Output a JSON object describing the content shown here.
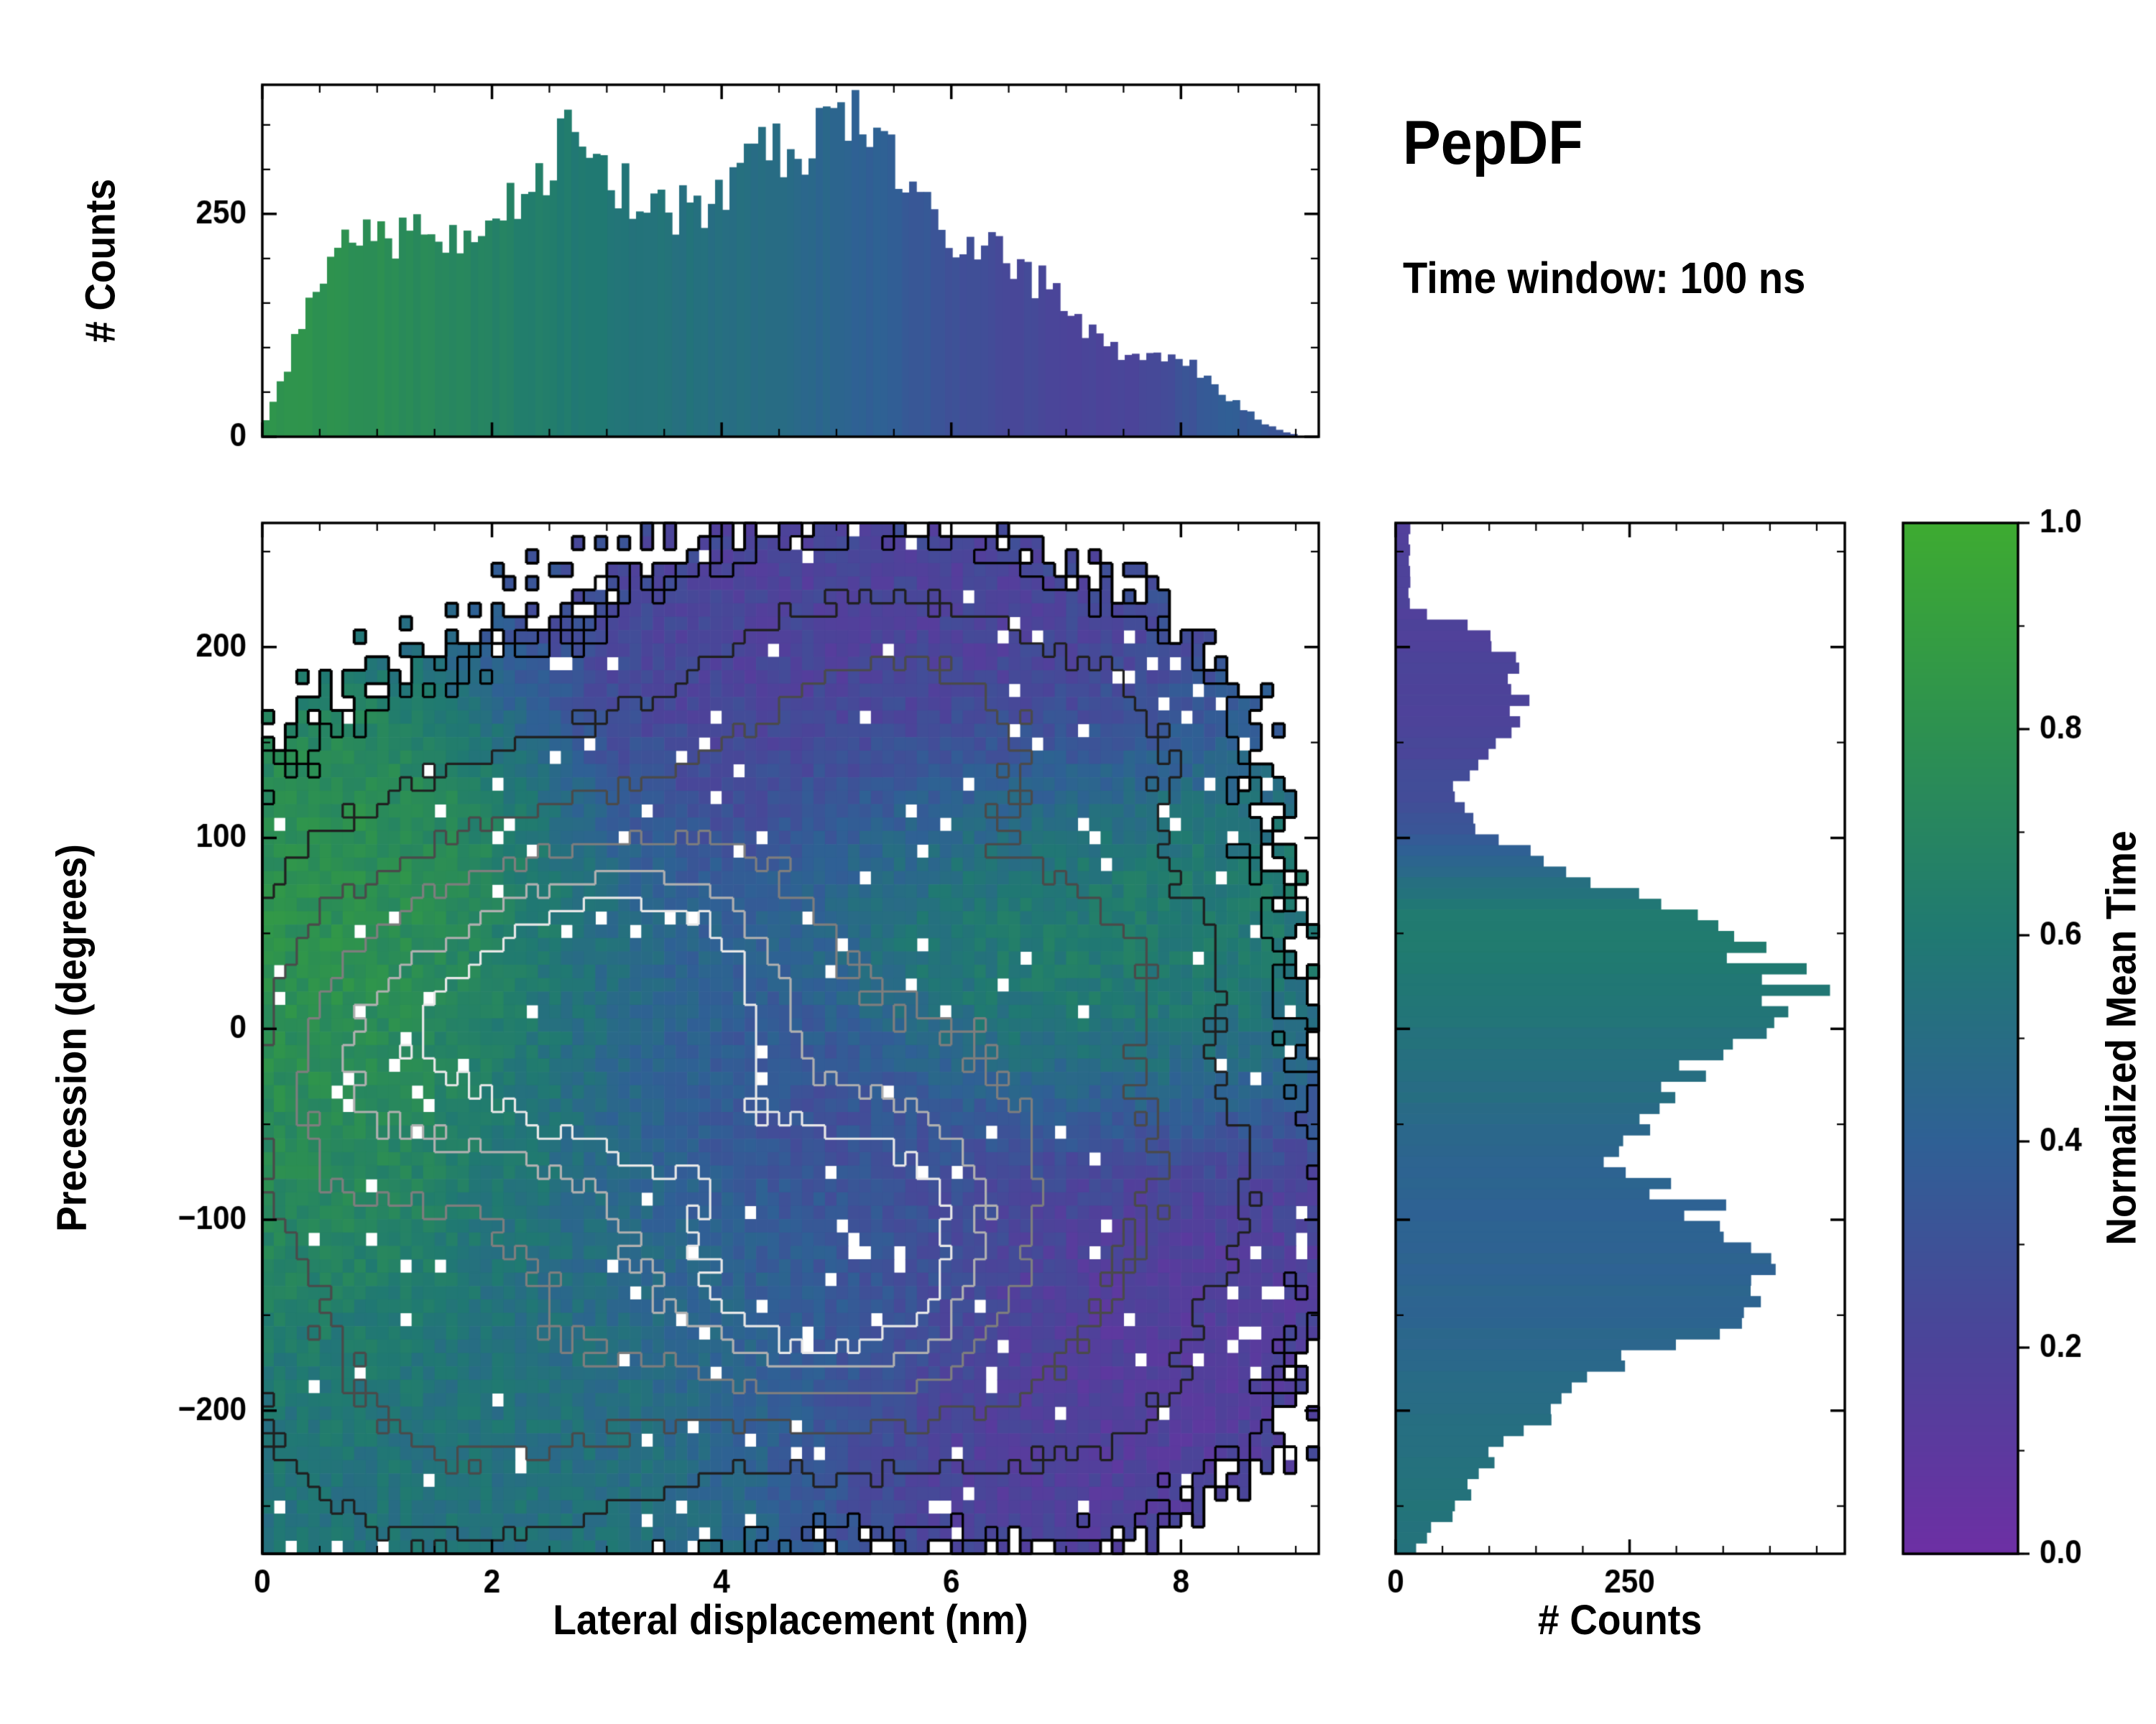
{
  "header": {
    "title": "PepDF",
    "subtitle": "Time window: 100 ns"
  },
  "colorbar": {
    "label": "Normalized Mean Time",
    "range": [
      0,
      1
    ],
    "tick_labels": [
      "0.0",
      "0.2",
      "0.4",
      "0.6",
      "0.8",
      "1.0"
    ],
    "minor_step": 0.1,
    "stops": [
      [
        0.0,
        "#6d2fa4"
      ],
      [
        0.2,
        "#4c4399"
      ],
      [
        0.4,
        "#2f6095"
      ],
      [
        0.6,
        "#207972"
      ],
      [
        0.8,
        "#2d9150"
      ],
      [
        1.0,
        "#3eab31"
      ]
    ]
  },
  "chart_data": [
    {
      "type": "bar",
      "name": "top-marginal-histogram",
      "ylabel": "# Counts",
      "xlim": [
        0,
        9.2
      ],
      "ylim": [
        0,
        395
      ],
      "xticks": [
        0,
        2,
        4,
        6,
        8
      ],
      "yticks": [
        0,
        250
      ],
      "xminor_step": 0.5,
      "yminor_step": 50,
      "bins": 147,
      "profile_x": [
        0.0,
        0.15,
        0.4,
        0.7,
        1.0,
        1.3,
        1.6,
        1.9,
        2.2,
        2.5,
        2.7,
        2.9,
        3.2,
        3.5,
        3.8,
        4.1,
        4.4,
        4.7,
        5.0,
        5.3,
        5.6,
        5.9,
        6.2,
        6.5,
        6.8,
        7.1,
        7.4,
        7.7,
        8.0,
        8.2,
        8.5,
        8.8,
        9.05
      ],
      "profile_counts": [
        5,
        60,
        140,
        215,
        235,
        225,
        220,
        245,
        255,
        295,
        345,
        285,
        270,
        245,
        255,
        295,
        315,
        335,
        370,
        335,
        300,
        215,
        230,
        205,
        170,
        130,
        100,
        85,
        95,
        70,
        35,
        10,
        0
      ],
      "color_x": [
        0,
        1,
        2,
        3,
        4,
        4.8,
        5.5,
        6,
        6.5,
        7,
        7.6,
        8,
        8.4,
        9.05
      ],
      "color_t": [
        0.82,
        0.78,
        0.68,
        0.58,
        0.52,
        0.46,
        0.38,
        0.3,
        0.25,
        0.22,
        0.2,
        0.3,
        0.38,
        0.3
      ]
    },
    {
      "type": "heatmap",
      "name": "joint-heatmap",
      "xlabel": "Lateral displacement (nm)",
      "ylabel": "Precession (degrees)",
      "value_label": "Normalized Mean Time",
      "xlim": [
        0,
        9.2
      ],
      "ylim": [
        -275,
        265
      ],
      "xticks": [
        0,
        2,
        4,
        6,
        8
      ],
      "yticks": [
        -200,
        -100,
        0,
        100,
        200
      ],
      "xminor_step": 0.5,
      "yminor_step": 50,
      "grid_nx": 92,
      "grid_ny": 77,
      "mask_threshold": 0.13,
      "hole_fraction": 0.03,
      "density_blobs": [
        [
          2.7,
          15,
          1.1,
          70,
          0.95
        ],
        [
          3.4,
          10,
          0.7,
          45,
          0.8
        ],
        [
          5.0,
          -135,
          0.9,
          50,
          1.3
        ],
        [
          1.2,
          -5,
          0.9,
          70,
          0.75
        ],
        [
          4.3,
          55,
          1.6,
          85,
          0.5
        ],
        [
          5.2,
          160,
          1.1,
          55,
          0.5
        ],
        [
          6.3,
          170,
          0.9,
          40,
          0.35
        ],
        [
          7.7,
          150,
          0.6,
          35,
          0.25
        ],
        [
          6.6,
          40,
          1.1,
          55,
          0.45
        ],
        [
          7.6,
          30,
          0.7,
          45,
          0.3
        ],
        [
          1.6,
          -215,
          1.1,
          55,
          0.5
        ],
        [
          2.9,
          -165,
          1.0,
          55,
          0.45
        ],
        [
          6.8,
          -120,
          1.4,
          65,
          0.42
        ],
        [
          6.9,
          -195,
          1.0,
          45,
          0.3
        ],
        [
          7.8,
          -75,
          0.8,
          45,
          0.3
        ],
        [
          5.8,
          -60,
          1.0,
          50,
          0.45
        ],
        [
          3.8,
          -90,
          1.4,
          70,
          0.5
        ],
        [
          0.5,
          -90,
          0.7,
          90,
          0.5
        ],
        [
          3.5,
          -30,
          3.0,
          150,
          0.3
        ]
      ],
      "value_blobs": [
        [
          1.0,
          10,
          1.1,
          80,
          0.85,
          3
        ],
        [
          1.8,
          60,
          0.9,
          50,
          0.8,
          2
        ],
        [
          0.6,
          -70,
          0.8,
          70,
          0.75,
          2
        ],
        [
          2.8,
          15,
          0.9,
          45,
          0.45,
          2.5
        ],
        [
          3.6,
          15,
          0.7,
          40,
          0.48,
          2
        ],
        [
          2.5,
          -60,
          1.2,
          60,
          0.5,
          1.5
        ],
        [
          4.6,
          -35,
          0.9,
          45,
          0.15,
          2.5
        ],
        [
          5.2,
          160,
          1.6,
          75,
          0.15,
          3
        ],
        [
          4.5,
          105,
          1.2,
          50,
          0.3,
          2
        ],
        [
          6.6,
          40,
          1.3,
          55,
          0.72,
          4
        ],
        [
          5.9,
          75,
          0.8,
          40,
          0.75,
          1.5
        ],
        [
          5.0,
          -135,
          1.0,
          55,
          0.42,
          2.5
        ],
        [
          7.0,
          -130,
          1.6,
          85,
          0.12,
          3
        ],
        [
          6.9,
          -200,
          1.2,
          50,
          0.14,
          2
        ],
        [
          1.6,
          -215,
          1.6,
          65,
          0.56,
          3
        ],
        [
          3.0,
          -160,
          1.1,
          55,
          0.5,
          2
        ],
        [
          4.0,
          -90,
          1.3,
          60,
          0.45,
          1.5
        ],
        [
          8.0,
          30,
          0.8,
          50,
          0.65,
          1.5
        ]
      ],
      "value_base": [
        0.5,
        0.25
      ],
      "contour_levels": [
        [
          0.18,
          "#000000"
        ],
        [
          0.45,
          "#1f1f1f"
        ],
        [
          0.8,
          "#4a4a4a"
        ],
        [
          1.15,
          "#7e7e7e"
        ],
        [
          1.45,
          "#b0b0b0"
        ],
        [
          1.7,
          "#e8e8e8"
        ]
      ]
    },
    {
      "type": "bar",
      "name": "right-marginal-histogram",
      "orientation": "horizontal",
      "xlabel": "# Counts",
      "xlim": [
        0,
        480
      ],
      "ylim": [
        -275,
        265
      ],
      "xticks": [
        0,
        250
      ],
      "yticks": [
        -200,
        -100,
        0,
        100,
        200
      ],
      "xminor_step": 50,
      "yminor_step": 50,
      "bins": 96,
      "profile_y": [
        -272,
        -255,
        -240,
        -225,
        -210,
        -195,
        -180,
        -165,
        -150,
        -135,
        -120,
        -105,
        -90,
        -75,
        -60,
        -45,
        -30,
        -15,
        0,
        15,
        30,
        45,
        60,
        75,
        90,
        105,
        120,
        135,
        150,
        165,
        180,
        195,
        210,
        220
      ],
      "profile_counts": [
        20,
        55,
        80,
        100,
        135,
        175,
        230,
        300,
        360,
        420,
        430,
        380,
        305,
        255,
        235,
        255,
        290,
        340,
        400,
        440,
        420,
        360,
        300,
        230,
        160,
        90,
        60,
        75,
        110,
        135,
        140,
        120,
        80,
        15
      ],
      "color_y": [
        -272,
        -240,
        -210,
        -180,
        -150,
        -120,
        -90,
        -60,
        -40,
        -20,
        0,
        20,
        40,
        60,
        80,
        95,
        110,
        130,
        160,
        190,
        220
      ],
      "color_t": [
        0.55,
        0.55,
        0.52,
        0.48,
        0.44,
        0.42,
        0.42,
        0.45,
        0.5,
        0.52,
        0.55,
        0.58,
        0.62,
        0.6,
        0.5,
        0.38,
        0.3,
        0.25,
        0.2,
        0.2,
        0.18
      ]
    }
  ]
}
